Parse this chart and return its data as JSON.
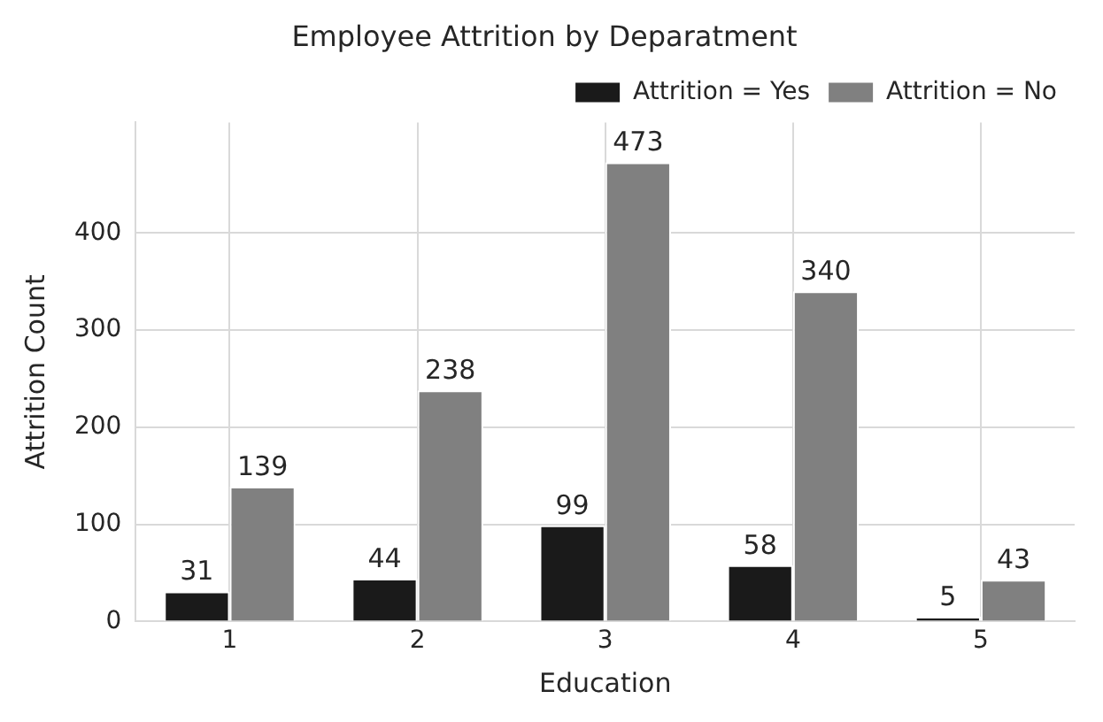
{
  "chart_data": {
    "type": "bar",
    "title": "Employee Attrition by Deparatment",
    "xlabel": "Education",
    "ylabel": "Attrition Count",
    "categories": [
      "1",
      "2",
      "3",
      "4",
      "5"
    ],
    "series": [
      {
        "name": "Attrition = Yes",
        "color": "#1a1a1a",
        "values": [
          31,
          44,
          99,
          58,
          5
        ]
      },
      {
        "name": "Attrition = No",
        "color": "#808080",
        "values": [
          139,
          238,
          473,
          340,
          43
        ]
      }
    ],
    "ylim": [
      0,
      514
    ],
    "yticks": [
      0,
      100,
      200,
      300,
      400
    ],
    "grid": true,
    "legend": "top right",
    "data_labels": true
  }
}
